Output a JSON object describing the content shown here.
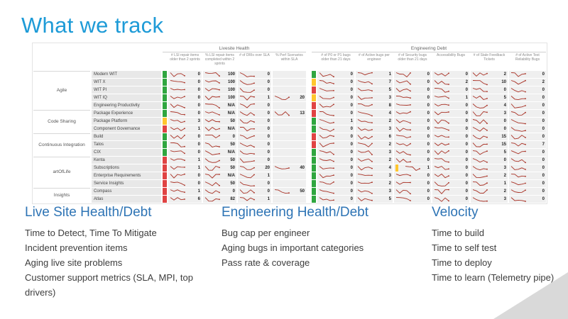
{
  "title": "What we track",
  "colors": {
    "title_blue": "#1E9BD7",
    "heading_blue": "#2E74B5",
    "green": "#2FA63F",
    "red": "#E04343",
    "yellow": "#FFC62E",
    "spark": "#A93226"
  },
  "dashboard": {
    "group_headers": [
      {
        "label": "Livesite Health"
      },
      {
        "label": "Engineering Debt"
      }
    ],
    "columns_livesite": [
      "# LSI repair items older than 2 sprints",
      "% LSI repair items completed within 2 sprints",
      "# of DRIs over SLA",
      "% Perf Scenarios within SLA"
    ],
    "columns_engineering": [
      "# of P0 or P1 bugs older than 21 days",
      "# of Active bugs per engineer",
      "# of Security bugs older than 21 days",
      "Accessibility Bugs",
      "# of Stale Feedback Tickets",
      "# of Active Test Reliability Bugs"
    ],
    "row_groups": [
      {
        "label": "Agile",
        "count": 5
      },
      {
        "label": "Code Sharing",
        "count": 3
      },
      {
        "label": "Continuous Integration",
        "count": 3
      },
      {
        "label": "artOfLife",
        "count": 4
      },
      {
        "label": "Insights",
        "count": 2
      }
    ],
    "rows": [
      {
        "name": "Modern WIT",
        "ls_status": "green",
        "eng_status": "green",
        "ls": [
          "0",
          "100",
          "0",
          ""
        ],
        "eng": [
          "0",
          "1",
          "0",
          "0",
          "2",
          "0"
        ]
      },
      {
        "name": "WIT X",
        "ls_status": "green",
        "eng_status": "yellow",
        "ls": [
          "0",
          "100",
          "0",
          ""
        ],
        "eng": [
          "0",
          "7",
          "0",
          "2",
          "10",
          "2"
        ]
      },
      {
        "name": "WIT PI",
        "ls_status": "green",
        "eng_status": "red",
        "ls": [
          "0",
          "100",
          "0",
          ""
        ],
        "eng": [
          "0",
          "5",
          "0",
          "0",
          "0",
          "0"
        ]
      },
      {
        "name": "WIT IQ",
        "ls_status": "green",
        "eng_status": "yellow",
        "ls": [
          "0",
          "100",
          "1",
          "20"
        ],
        "eng": [
          "0",
          "3",
          "0",
          "1",
          "5",
          "0"
        ]
      },
      {
        "name": "Engineering Productivity",
        "ls_status": "green",
        "eng_status": "red",
        "ls": [
          "0",
          "N/A",
          "0",
          ""
        ],
        "eng": [
          "0",
          "8",
          "0",
          "0",
          "4",
          "0"
        ]
      },
      {
        "name": "Package Experience",
        "ls_status": "green",
        "eng_status": "red",
        "ls": [
          "0",
          "N/A",
          "0",
          "13"
        ],
        "eng": [
          "0",
          "4",
          "0",
          "0",
          "3",
          "0"
        ]
      },
      {
        "name": "Package Platform",
        "ls_status": "yellow",
        "eng_status": "green",
        "ls": [
          "3",
          "50",
          "0",
          ""
        ],
        "eng": [
          "1",
          "2",
          "0",
          "0",
          "0",
          "0"
        ]
      },
      {
        "name": "Component Governance",
        "ls_status": "red",
        "eng_status": "green",
        "ls": [
          "1",
          "N/A",
          "0",
          ""
        ],
        "eng": [
          "0",
          "3",
          "0",
          "0",
          "0",
          "0"
        ]
      },
      {
        "name": "Build",
        "ls_status": "green",
        "eng_status": "red",
        "ls": [
          "0",
          "0",
          "0",
          ""
        ],
        "eng": [
          "0",
          "6",
          "0",
          "0",
          "15",
          "0"
        ]
      },
      {
        "name": "Talos",
        "ls_status": "green",
        "eng_status": "red",
        "ls": [
          "0",
          "50",
          "0",
          ""
        ],
        "eng": [
          "0",
          "2",
          "0",
          "0",
          "15",
          "7"
        ]
      },
      {
        "name": "CIX",
        "ls_status": "green",
        "eng_status": "green",
        "ls": [
          "0",
          "N/A",
          "0",
          ""
        ],
        "eng": [
          "0",
          "3",
          "0",
          "0",
          "5",
          "0"
        ]
      },
      {
        "name": "Kenta",
        "ls_status": "red",
        "eng_status": "green",
        "ls": [
          "1",
          "50",
          "0",
          ""
        ],
        "eng": [
          "0",
          "2",
          "0",
          "0",
          "0",
          "0"
        ]
      },
      {
        "name": "Subscriptions",
        "ls_status": "red",
        "eng_status": "green",
        "eng_mid_status": "yellow",
        "ls": [
          "1",
          "50",
          "20",
          "40"
        ],
        "eng": [
          "0",
          "4",
          "1",
          "0",
          "3",
          "0"
        ]
      },
      {
        "name": "Enterprise Requirements",
        "ls_status": "red",
        "eng_status": "green",
        "ls": [
          "0",
          "N/A",
          "1",
          ""
        ],
        "eng": [
          "0",
          "3",
          "0",
          "0",
          "2",
          "0"
        ]
      },
      {
        "name": "Service Insights",
        "ls_status": "red",
        "eng_status": "green",
        "ls": [
          "0",
          "50",
          "0",
          ""
        ],
        "eng": [
          "0",
          "2",
          "0",
          "0",
          "1",
          "0"
        ]
      },
      {
        "name": "Compass",
        "ls_status": "red",
        "eng_status": "green",
        "ls": [
          "1",
          "0",
          "0",
          "50"
        ],
        "eng": [
          "0",
          "3",
          "0",
          "0",
          "2",
          "0"
        ]
      },
      {
        "name": "Atlas",
        "ls_status": "red",
        "eng_status": "green",
        "ls": [
          "6",
          "82",
          "1",
          ""
        ],
        "eng": [
          "0",
          "5",
          "0",
          "0",
          "3",
          "0"
        ]
      }
    ]
  },
  "sections": [
    {
      "heading": "Live Site Health/Debt",
      "items": [
        "Time to Detect, Time To Mitigate",
        "Incident prevention items",
        "Aging live site problems",
        "Customer support metrics (SLA, MPI, top drivers)"
      ]
    },
    {
      "heading": "Engineering Health/Debt",
      "items": [
        "Bug cap per engineer",
        "Aging bugs in important categories",
        "Pass rate & coverage"
      ]
    },
    {
      "heading": "Velocity",
      "items": [
        "Time to build",
        "Time to self test",
        "Time to deploy",
        "Time to learn (Telemetry pipe)"
      ]
    }
  ]
}
